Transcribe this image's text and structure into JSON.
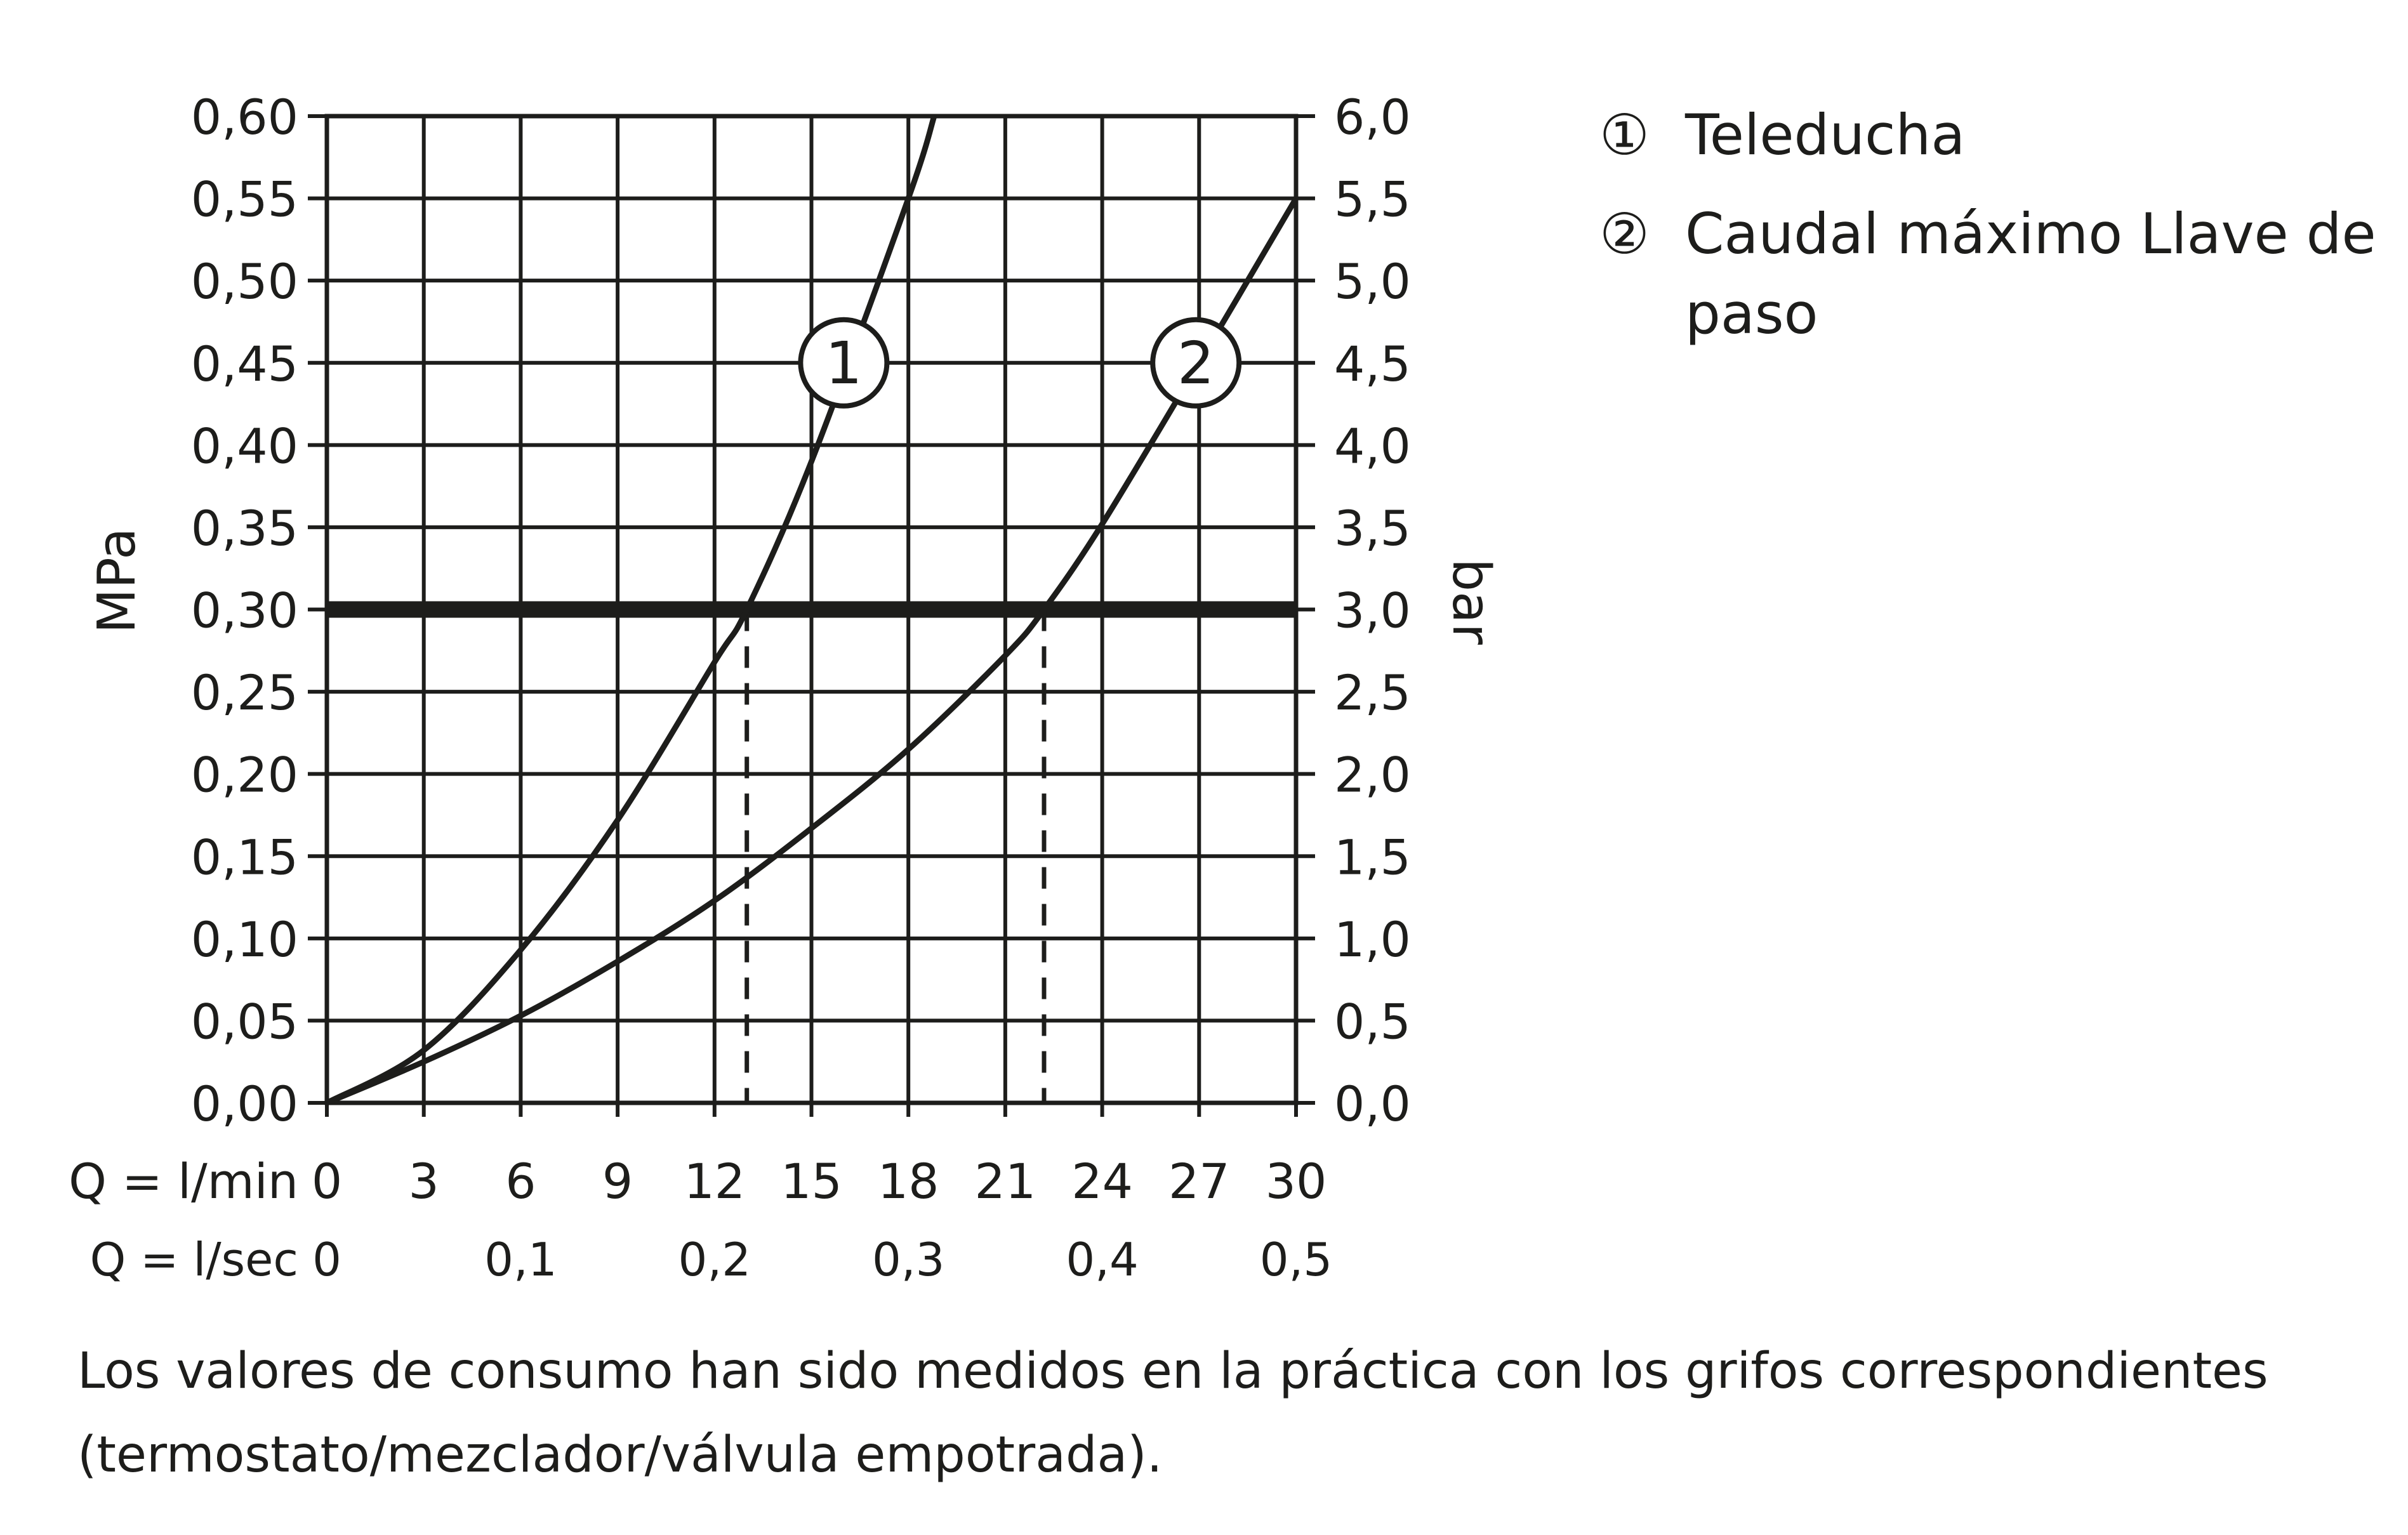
{
  "chart_data": {
    "type": "line",
    "y_left_label": "MPa",
    "y_right_label": "bar",
    "x_rows": [
      {
        "label": "Q = l/min",
        "ticks": [
          "0",
          "3",
          "6",
          "9",
          "12",
          "15",
          "18",
          "21",
          "24",
          "27",
          "30"
        ],
        "values": [
          0,
          3,
          6,
          9,
          12,
          15,
          18,
          21,
          24,
          27,
          30
        ]
      },
      {
        "label": "Q = l/sec",
        "ticks": [
          "0",
          "0,1",
          "0,2",
          "0,3",
          "0,4",
          "0,5"
        ],
        "values": [
          0,
          6,
          12,
          18,
          24,
          30
        ]
      }
    ],
    "xlim": [
      0,
      30
    ],
    "ylim": [
      0,
      0.6
    ],
    "y_left_ticks": [
      "0,00",
      "0,05",
      "0,10",
      "0,15",
      "0,20",
      "0,25",
      "0,30",
      "0,35",
      "0,40",
      "0,45",
      "0,50",
      "0,55",
      "0,60"
    ],
    "y_right_ticks": [
      "0,0",
      "0,5",
      "1,0",
      "1,5",
      "2,0",
      "2,5",
      "3,0",
      "3,5",
      "4,0",
      "4,5",
      "5,0",
      "5,5",
      "6,0"
    ],
    "grid": true,
    "reference_line": {
      "y": 0.3
    },
    "dashed_drops": [
      {
        "x": 13.0
      },
      {
        "x": 22.2
      }
    ],
    "series": [
      {
        "marker": "1",
        "x": [
          0,
          3,
          6,
          9,
          12,
          13,
          15,
          18,
          18.8
        ],
        "y": [
          0,
          0.032,
          0.093,
          0.172,
          0.268,
          0.3,
          0.39,
          0.55,
          0.6
        ]
      },
      {
        "marker": "2",
        "x": [
          0,
          3,
          6,
          9,
          12,
          15,
          18,
          21,
          22.2,
          24,
          27,
          30
        ],
        "y": [
          0,
          0.025,
          0.053,
          0.086,
          0.123,
          0.167,
          0.215,
          0.272,
          0.3,
          0.352,
          0.45,
          0.55
        ]
      }
    ],
    "line_color": "#1d1d1b"
  },
  "legend": {
    "items": [
      {
        "marker": "①",
        "label": "Teleducha"
      },
      {
        "marker": "②",
        "label": "Caudal máximo Llave de paso"
      }
    ]
  },
  "footnote": "Los valores de consumo han sido medidos en la práctica con los grifos correspondientes (termostato/mezclador/válvula empotrada)."
}
